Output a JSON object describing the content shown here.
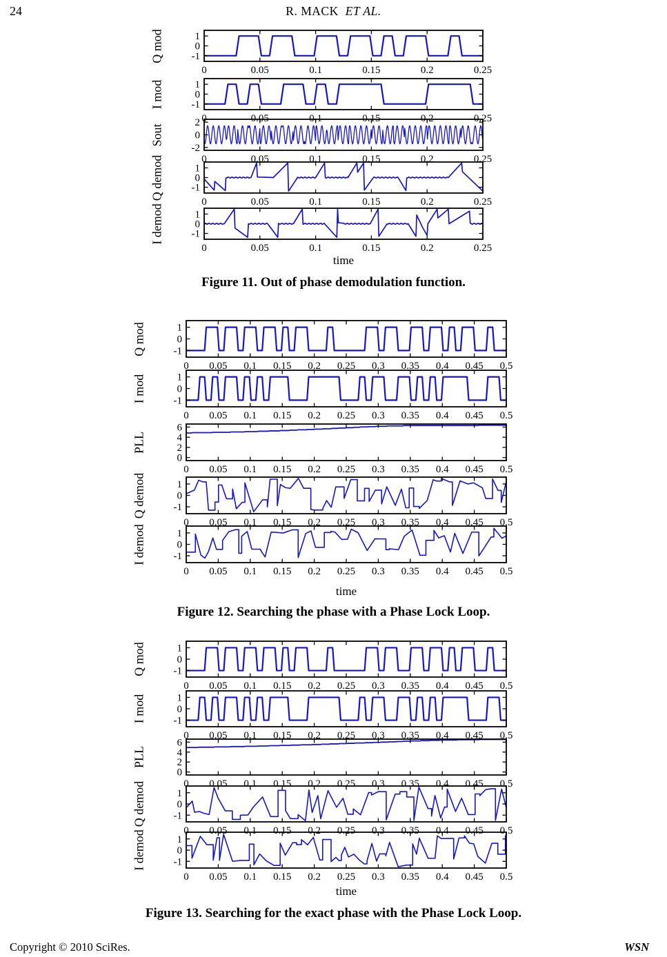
{
  "page": {
    "number": "24",
    "header_name": "R. MACK",
    "header_etal": "ET AL.",
    "footer_left": "Copyright © 2010 SciRes.",
    "footer_right": "WSN"
  },
  "colors": {
    "trace": "#1515c8",
    "axis": "#000000"
  },
  "figures": [
    {
      "caption": "Figure 11. Out of phase demodulation function.",
      "xlabel": "time",
      "xmax": 0.25,
      "xtick_vals": [
        0,
        0.05,
        0.1,
        0.15,
        0.2,
        0.25
      ],
      "xtick_labels": [
        "0",
        "0.05",
        "0.1",
        "0.15",
        "0.2",
        "0.25"
      ],
      "plots": [
        {
          "ylabel": "Q mod",
          "ylim": [
            -1.57,
            1.57
          ],
          "yticks": [
            [
              1,
              "1"
            ],
            [
              0,
              "0"
            ],
            [
              -1,
              "-1"
            ]
          ],
          "series": {
            "type": "bits",
            "bit_period": 0.01,
            "bits": [
              -1,
              -1,
              -1,
              1,
              1,
              -1,
              1,
              1,
              -1,
              -1,
              1,
              1,
              -1,
              1,
              1,
              -1,
              1,
              -1,
              1,
              1,
              -1,
              -1,
              1,
              -1,
              -1
            ]
          }
        },
        {
          "ylabel": "I mod",
          "ylim": [
            -1.57,
            1.57
          ],
          "yticks": [
            [
              1,
              "1"
            ],
            [
              0,
              "0"
            ],
            [
              -1,
              "-1"
            ]
          ],
          "series": {
            "type": "bits",
            "bit_period": 0.01,
            "bits": [
              -1,
              -1,
              1,
              -1,
              1,
              -1,
              -1,
              1,
              1,
              -1,
              1,
              -1,
              1,
              1,
              1,
              1,
              -1,
              -1,
              -1,
              -1,
              1,
              1,
              1,
              1,
              -1
            ]
          }
        },
        {
          "ylabel": "Sout",
          "ylim": [
            -2.45,
            2.45
          ],
          "yticks": [
            [
              2,
              "2"
            ],
            [
              0,
              "0"
            ],
            [
              -2,
              "-2"
            ]
          ],
          "series": {
            "type": "qpsk",
            "freq": 200,
            "amp": 1.45
          }
        },
        {
          "ylabel": "Q demod",
          "ylim": [
            -1.6,
            1.6
          ],
          "yticks": [
            [
              1,
              "1"
            ],
            [
              0,
              "0"
            ],
            [
              -1,
              "-1"
            ]
          ],
          "series": {
            "type": "keypoints",
            "ripple": true,
            "points": [
              [
                0,
                -0.15
              ],
              [
                0.009,
                -1.3
              ],
              [
                0.0095,
                -0.4
              ],
              [
                0.019,
                -1.35
              ],
              [
                0.0195,
                0
              ],
              [
                0.042,
                0
              ],
              [
                0.047,
                1.5
              ],
              [
                0.0478,
                0.05
              ],
              [
                0.062,
                0
              ],
              [
                0.075,
                1.5
              ],
              [
                0.0757,
                -1.4
              ],
              [
                0.084,
                0
              ],
              [
                0.1,
                0
              ],
              [
                0.108,
                1.5
              ],
              [
                0.1087,
                0
              ],
              [
                0.129,
                0
              ],
              [
                0.137,
                1.5
              ],
              [
                0.1377,
                0.55
              ],
              [
                0.143,
                1.5
              ],
              [
                0.1437,
                -1.3
              ],
              [
                0.152,
                0
              ],
              [
                0.174,
                0
              ],
              [
                0.181,
                -1.35
              ],
              [
                0.1817,
                0
              ],
              [
                0.219,
                0
              ],
              [
                0.231,
                1.5
              ],
              [
                0.2317,
                0.6
              ],
              [
                0.25,
                -1.4
              ]
            ]
          }
        },
        {
          "ylabel": "I demod",
          "ylim": [
            -1.6,
            1.6
          ],
          "yticks": [
            [
              1,
              "1"
            ],
            [
              0,
              "0"
            ],
            [
              -1,
              "-1"
            ]
          ],
          "series": {
            "type": "keypoints",
            "ripple": true,
            "points": [
              [
                0,
                0
              ],
              [
                0.018,
                0
              ],
              [
                0.027,
                1.5
              ],
              [
                0.0277,
                -0.45
              ],
              [
                0.039,
                -1.4
              ],
              [
                0.0397,
                0
              ],
              [
                0.057,
                0
              ],
              [
                0.066,
                -1.4
              ],
              [
                0.0667,
                0
              ],
              [
                0.08,
                0
              ],
              [
                0.088,
                1.5
              ],
              [
                0.0887,
                0
              ],
              [
                0.108,
                0
              ],
              [
                0.119,
                -1.4
              ],
              [
                0.1197,
                1.5
              ],
              [
                0.1204,
                0.1
              ],
              [
                0.125,
                0
              ],
              [
                0.149,
                0
              ],
              [
                0.156,
                1.5
              ],
              [
                0.1567,
                -1.3
              ],
              [
                0.164,
                0
              ],
              [
                0.183,
                0
              ],
              [
                0.19,
                -1.3
              ],
              [
                0.1907,
                0.9
              ],
              [
                0.196,
                -0.4
              ],
              [
                0.2,
                -1.2
              ],
              [
                0.2007,
                0
              ],
              [
                0.209,
                1.5
              ],
              [
                0.2097,
                0.6
              ],
              [
                0.219,
                1.5
              ],
              [
                0.2197,
                0
              ],
              [
                0.238,
                1.3
              ],
              [
                0.2387,
                0
              ],
              [
                0.25,
                0
              ]
            ]
          }
        }
      ]
    },
    {
      "caption": "Figure 12. Searching the phase with a Phase Lock Loop.",
      "xlabel": "time",
      "xmax": 0.5,
      "xtick_vals": [
        0,
        0.05,
        0.1,
        0.15,
        0.2,
        0.25,
        0.3,
        0.35,
        0.4,
        0.45,
        0.5
      ],
      "xtick_labels": [
        "0",
        "0.05",
        "0.1",
        "0.15",
        "0.2",
        "0.25",
        "0.3",
        "0.35",
        "0.4",
        "0.45",
        "0.5"
      ],
      "plots": [
        {
          "ylabel": "Q mod",
          "ylim": [
            -1.57,
            1.57
          ],
          "yticks": [
            [
              1,
              "1"
            ],
            [
              0,
              "0"
            ],
            [
              -1,
              "-1"
            ]
          ],
          "series": {
            "type": "bits",
            "bit_period": 0.01,
            "bits": [
              -1,
              -1,
              -1,
              1,
              1,
              -1,
              1,
              1,
              -1,
              1,
              1,
              -1,
              1,
              1,
              -1,
              1,
              -1,
              1,
              1,
              -1,
              -1,
              -1,
              1,
              -1,
              -1,
              -1,
              -1,
              -1,
              1,
              1,
              -1,
              1,
              1,
              -1,
              -1,
              1,
              1,
              -1,
              1,
              1,
              -1,
              1,
              -1,
              1,
              1,
              -1,
              -1,
              1,
              -1,
              -1
            ]
          }
        },
        {
          "ylabel": "I mod",
          "ylim": [
            -1.57,
            1.57
          ],
          "yticks": [
            [
              1,
              "1"
            ],
            [
              0,
              "0"
            ],
            [
              -1,
              "-1"
            ]
          ],
          "series": {
            "type": "bits",
            "bit_period": 0.01,
            "bits": [
              -1,
              -1,
              1,
              -1,
              1,
              -1,
              1,
              1,
              -1,
              1,
              -1,
              1,
              -1,
              1,
              1,
              1,
              -1,
              -1,
              -1,
              1,
              1,
              1,
              1,
              1,
              -1,
              -1,
              -1,
              1,
              -1,
              1,
              1,
              -1,
              -1,
              1,
              1,
              -1,
              1,
              -1,
              1,
              -1,
              1,
              1,
              1,
              1,
              -1,
              -1,
              -1,
              1,
              1,
              -1
            ]
          }
        },
        {
          "ylabel": "PLL",
          "ylim": [
            -0.6,
            6.6
          ],
          "yticks": [
            [
              6,
              "6"
            ],
            [
              4,
              "4"
            ],
            [
              2,
              "2"
            ],
            [
              0,
              "0"
            ]
          ],
          "series": {
            "type": "steps",
            "step": 0.07,
            "points": [
              [
                0,
                4.85
              ],
              [
                0.05,
                4.95
              ],
              [
                0.1,
                5.1
              ],
              [
                0.15,
                5.3
              ],
              [
                0.2,
                5.55
              ],
              [
                0.25,
                5.85
              ],
              [
                0.3,
                6.15
              ],
              [
                0.35,
                6.3
              ],
              [
                0.5,
                6.35
              ]
            ]
          }
        },
        {
          "ylabel": "Q demod",
          "ylim": [
            -1.6,
            1.6
          ],
          "yticks": [
            [
              1,
              "1"
            ],
            [
              0,
              "0"
            ],
            [
              -1,
              "-1"
            ]
          ],
          "series": {
            "type": "jagged",
            "seed": 42,
            "amp_min": 0.25,
            "amp_max": 1.5
          }
        },
        {
          "ylabel": "I demod",
          "ylim": [
            -1.6,
            1.6
          ],
          "yticks": [
            [
              1,
              "1"
            ],
            [
              0,
              "0"
            ],
            [
              -1,
              "-1"
            ]
          ],
          "series": {
            "type": "jagged",
            "seed": 7,
            "amp_min": 0.25,
            "amp_max": 1.5
          }
        }
      ]
    },
    {
      "caption": "Figure 13. Searching for the exact phase with the Phase Lock Loop.",
      "xlabel": "time",
      "xmax": 0.5,
      "xtick_vals": [
        0,
        0.05,
        0.1,
        0.15,
        0.2,
        0.25,
        0.3,
        0.35,
        0.4,
        0.45,
        0.5
      ],
      "xtick_labels": [
        "0",
        "0.05",
        "0.1",
        "0.15",
        "0.2",
        "0.25",
        "0.3",
        "0.35",
        "0.4",
        "0.45",
        "0.5"
      ],
      "plots": [
        {
          "ylabel": "Q mod",
          "ylim": [
            -1.57,
            1.57
          ],
          "yticks": [
            [
              1,
              "1"
            ],
            [
              0,
              "0"
            ],
            [
              -1,
              "-1"
            ]
          ],
          "series": {
            "type": "bits",
            "bit_period": 0.01,
            "bits": [
              -1,
              -1,
              -1,
              1,
              1,
              -1,
              1,
              1,
              -1,
              1,
              1,
              -1,
              1,
              1,
              -1,
              1,
              -1,
              1,
              1,
              -1,
              -1,
              -1,
              1,
              -1,
              -1,
              -1,
              -1,
              -1,
              1,
              1,
              -1,
              1,
              1,
              -1,
              -1,
              1,
              1,
              -1,
              1,
              1,
              -1,
              1,
              -1,
              1,
              1,
              -1,
              -1,
              1,
              -1,
              -1
            ]
          }
        },
        {
          "ylabel": "I mod",
          "ylim": [
            -1.57,
            1.57
          ],
          "yticks": [
            [
              1,
              "1"
            ],
            [
              0,
              "0"
            ],
            [
              -1,
              "-1"
            ]
          ],
          "series": {
            "type": "bits",
            "bit_period": 0.01,
            "bits": [
              -1,
              -1,
              1,
              -1,
              1,
              -1,
              1,
              1,
              -1,
              1,
              -1,
              1,
              -1,
              1,
              1,
              1,
              -1,
              -1,
              -1,
              1,
              1,
              1,
              1,
              1,
              -1,
              -1,
              -1,
              1,
              -1,
              1,
              1,
              -1,
              -1,
              1,
              1,
              -1,
              1,
              -1,
              1,
              -1,
              1,
              1,
              1,
              1,
              -1,
              -1,
              -1,
              1,
              1,
              -1
            ]
          }
        },
        {
          "ylabel": "PLL",
          "ylim": [
            -0.6,
            6.6
          ],
          "yticks": [
            [
              6,
              "6"
            ],
            [
              4,
              "4"
            ],
            [
              2,
              "2"
            ],
            [
              0,
              "0"
            ]
          ],
          "series": {
            "type": "steps",
            "step": 0.06,
            "points": [
              [
                0,
                4.9
              ],
              [
                0.1,
                5.15
              ],
              [
                0.2,
                5.5
              ],
              [
                0.3,
                5.95
              ],
              [
                0.35,
                6.2
              ],
              [
                0.4,
                6.4
              ],
              [
                0.45,
                6.5
              ],
              [
                0.5,
                6.55
              ]
            ]
          }
        },
        {
          "ylabel": "Q demod",
          "ylim": [
            -1.6,
            1.6
          ],
          "yticks": [
            [
              1,
              "1"
            ],
            [
              0,
              "0"
            ],
            [
              -1,
              "-1"
            ]
          ],
          "series": {
            "type": "jagged",
            "seed": 99,
            "amp_min": 0.25,
            "amp_max": 1.5
          }
        },
        {
          "ylabel": "I demod",
          "ylim": [
            -1.6,
            1.6
          ],
          "yticks": [
            [
              1,
              "1"
            ],
            [
              0,
              "0"
            ],
            [
              -1,
              "-1"
            ]
          ],
          "series": {
            "type": "jagged",
            "seed": 123,
            "amp_min": 0.25,
            "amp_max": 1.5
          }
        }
      ]
    }
  ]
}
